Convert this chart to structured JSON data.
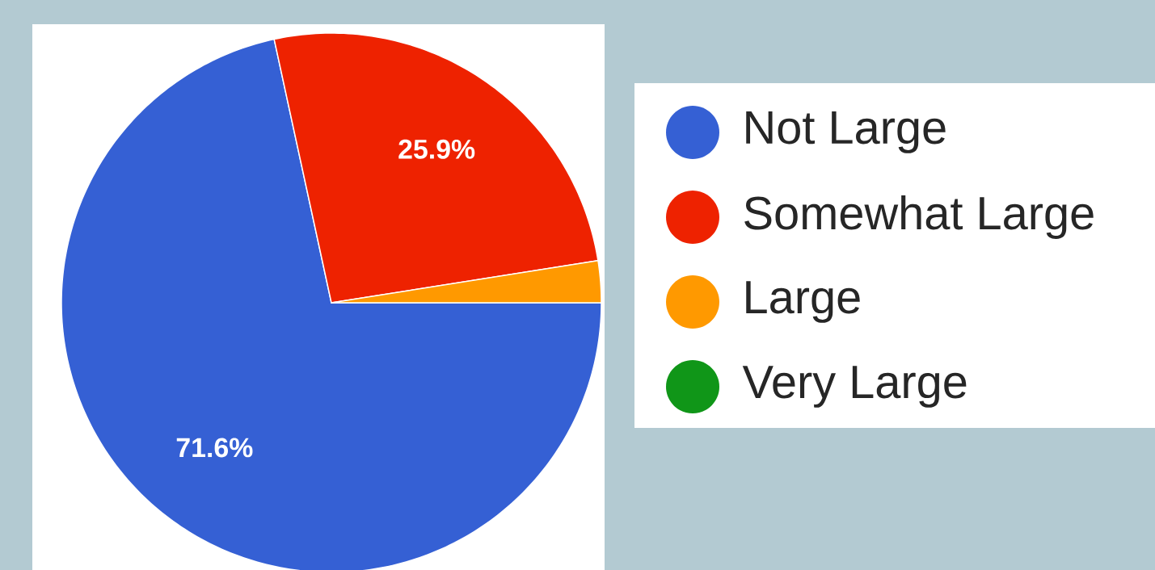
{
  "chart_data": {
    "type": "pie",
    "categories": [
      "Not Large",
      "Somewhat Large",
      "Large",
      "Very Large"
    ],
    "values": [
      71.6,
      25.9,
      2.5,
      0
    ],
    "colors": [
      "#3560d4",
      "#ee2200",
      "#ff9900",
      "#109618"
    ],
    "value_labels": [
      "71.6%",
      "25.9%",
      null,
      null
    ],
    "legend": "right"
  }
}
